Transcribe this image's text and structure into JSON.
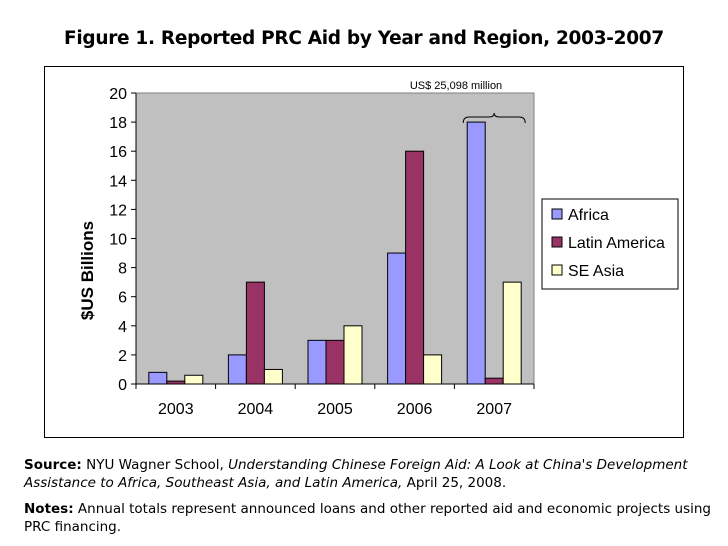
{
  "title": "Figure 1. Reported PRC Aid by Year and Region, 2003-2007",
  "source": {
    "label": "Source:",
    "pre": " NYU Wagner School, ",
    "work": "Understanding Chinese Foreign Aid: A Look at China's Development Assistance to Africa, Southeast Asia, and Latin America,",
    "post": " April 25, 2008."
  },
  "notes": {
    "label": "Notes:",
    "text": " Annual totals represent announced loans and other reported aid and economic projects using PRC financing."
  },
  "chart_data": {
    "type": "bar",
    "categories": [
      "2003",
      "2004",
      "2005",
      "2006",
      "2007"
    ],
    "series": [
      {
        "name": "Africa",
        "values": [
          0.8,
          2,
          3,
          9,
          18
        ],
        "color": "#9999ff"
      },
      {
        "name": "Latin America",
        "values": [
          0.2,
          7,
          3,
          16,
          0.4
        ],
        "color": "#993366"
      },
      {
        "name": "SE Asia",
        "values": [
          0.6,
          1,
          4,
          2,
          7
        ],
        "color": "#ffffcc"
      }
    ],
    "ylabel": "$US Billions",
    "xlabel": "",
    "ylim": [
      0,
      20
    ],
    "yticks": [
      0,
      2,
      4,
      6,
      8,
      10,
      12,
      14,
      16,
      18,
      20
    ],
    "grid": false,
    "plot_background": "#c0c0c0",
    "legend_position": "right",
    "annotation": {
      "text": "US$ 25,098 million",
      "category": "2007"
    }
  }
}
